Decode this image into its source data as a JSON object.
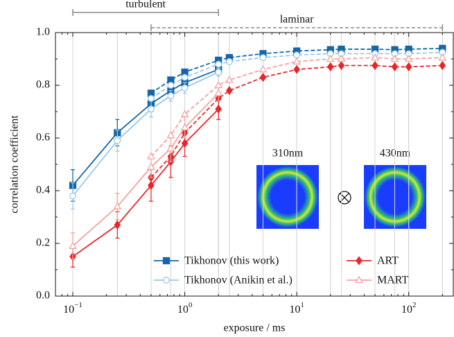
{
  "chart_data": {
    "type": "line",
    "xlabel": "exposure / ms",
    "ylabel": "correlation coefficient",
    "xscale": "log",
    "xlim": [
      0.07,
      250
    ],
    "ylim": [
      0,
      1
    ],
    "xticks": [
      {
        "value": 0.1,
        "label": "10",
        "exponent": "−1"
      },
      {
        "value": 1,
        "label": "10",
        "exponent": "0"
      },
      {
        "value": 10,
        "label": "10",
        "exponent": "1"
      },
      {
        "value": 100,
        "label": "10",
        "exponent": "2"
      }
    ],
    "yticks": [
      {
        "value": 0,
        "label": "0.0"
      },
      {
        "value": 0.2,
        "label": "0.2"
      },
      {
        "value": 0.4,
        "label": "0.4"
      },
      {
        "value": 0.6,
        "label": "0.6"
      },
      {
        "value": 0.8,
        "label": "0.8"
      },
      {
        "value": 1,
        "label": "1.0"
      }
    ],
    "legend": "lower right",
    "annotations": [
      {
        "text": "turbulent",
        "xrange": [
          0.1,
          2
        ],
        "style": "solid"
      },
      {
        "text": "laminar",
        "xrange": [
          0.5,
          200
        ],
        "style": "dashed"
      }
    ],
    "inset": {
      "labels": [
        "310nm",
        "430nm"
      ]
    },
    "series": [
      {
        "name": "Tikhonov (this work)",
        "color": "#1466a8",
        "marker": "square",
        "marker_fill": "#1466a8",
        "turbulent": {
          "x": [
            0.1,
            0.25,
            0.5,
            0.75,
            1,
            2
          ],
          "values": [
            0.42,
            0.62,
            0.73,
            0.78,
            0.81,
            0.86
          ],
          "errors": [
            0.06,
            0.05,
            0.03,
            0.02,
            0.02,
            0.015
          ]
        },
        "laminar": {
          "x": [
            0.5,
            0.75,
            1,
            2,
            2.5,
            5,
            10,
            20,
            25,
            50,
            75,
            100,
            200
          ],
          "values": [
            0.77,
            0.82,
            0.85,
            0.895,
            0.905,
            0.92,
            0.93,
            0.935,
            0.937,
            0.937,
            0.935,
            0.937,
            0.94
          ]
        }
      },
      {
        "name": "Tikhonov (Anikin et al.)",
        "color": "#9cc7e6",
        "marker": "circle",
        "marker_fill": "#ffffff",
        "turbulent": {
          "x": [
            0.1,
            0.25,
            0.5,
            0.75,
            1,
            2
          ],
          "values": [
            0.38,
            0.59,
            0.71,
            0.76,
            0.79,
            0.85
          ],
          "errors": [
            0.05,
            0.04,
            0.03,
            0.02,
            0.02,
            0.015
          ]
        },
        "laminar": {
          "x": [
            0.5,
            0.75,
            1,
            2,
            2.5,
            5,
            10,
            20,
            25,
            50,
            75,
            100,
            200
          ],
          "values": [
            0.75,
            0.8,
            0.83,
            0.88,
            0.89,
            0.905,
            0.915,
            0.92,
            0.92,
            0.92,
            0.92,
            0.92,
            0.925
          ]
        }
      },
      {
        "name": "ART",
        "color": "#e8262a",
        "marker": "diamond",
        "marker_fill": "#e8262a",
        "turbulent": {
          "x": [
            0.1,
            0.25,
            0.5,
            0.75,
            1,
            2
          ],
          "values": [
            0.15,
            0.27,
            0.42,
            0.51,
            0.58,
            0.71
          ],
          "errors": [
            0.04,
            0.05,
            0.06,
            0.06,
            0.05,
            0.04
          ]
        },
        "laminar": {
          "x": [
            0.5,
            0.75,
            1,
            2,
            2.5,
            5,
            10,
            20,
            25,
            50,
            75,
            100,
            200
          ],
          "values": [
            0.45,
            0.53,
            0.62,
            0.75,
            0.78,
            0.83,
            0.86,
            0.87,
            0.875,
            0.875,
            0.87,
            0.87,
            0.875
          ]
        }
      },
      {
        "name": "MART",
        "color": "#f4a19d",
        "marker": "triangle",
        "marker_fill": "#ffffff",
        "turbulent": {
          "x": [
            0.1,
            0.25,
            0.5,
            0.75,
            1,
            2
          ],
          "values": [
            0.19,
            0.34,
            0.49,
            0.56,
            0.64,
            0.77
          ],
          "errors": [
            0.05,
            0.05,
            0.04,
            0.05,
            0.04,
            0.03
          ]
        },
        "laminar": {
          "x": [
            0.5,
            0.75,
            1,
            2,
            2.5,
            5,
            10,
            20,
            25,
            50,
            75,
            100,
            200
          ],
          "values": [
            0.53,
            0.61,
            0.69,
            0.8,
            0.82,
            0.86,
            0.89,
            0.9,
            0.9,
            0.905,
            0.9,
            0.9,
            0.905
          ]
        }
      }
    ]
  }
}
